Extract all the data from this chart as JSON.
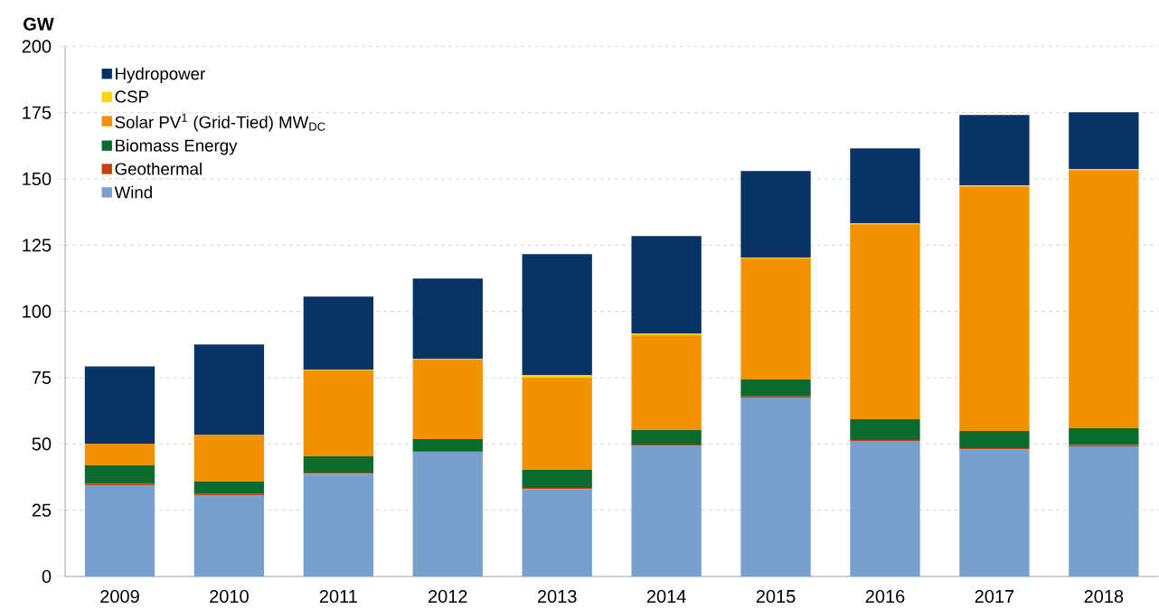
{
  "chart_data": {
    "type": "bar",
    "stacked": true,
    "ylabel": "GW",
    "categories": [
      "2009",
      "2010",
      "2011",
      "2012",
      "2013",
      "2014",
      "2015",
      "2016",
      "2017",
      "2018"
    ],
    "series": [
      {
        "name": "Wind",
        "color": "#77a1cc",
        "values": [
          34.4,
          30.7,
          38.8,
          47.0,
          33.0,
          49.4,
          67.5,
          51.1,
          48.0,
          49.1
        ]
      },
      {
        "name": "Geothermal",
        "color": "#c8400f",
        "values": [
          0.5,
          0.4,
          0.4,
          0.4,
          0.4,
          0.4,
          0.4,
          0.4,
          0.4,
          0.5
        ]
      },
      {
        "name": "Biomass Energy",
        "color": "#0b6b2f",
        "values": [
          7.0,
          4.7,
          6.1,
          4.4,
          6.8,
          5.4,
          6.4,
          7.8,
          6.5,
          6.3
        ]
      },
      {
        "name": "Solar PV$^{1}$ (Grid-Tied) MW$_{DC}$",
        "color": "#f39200",
        "values": [
          8.2,
          17.7,
          32.4,
          30.0,
          34.8,
          35.8,
          45.7,
          73.6,
          92.3,
          97.4
        ]
      },
      {
        "name": "CSP",
        "color": "#ffd500",
        "values": [
          null,
          null,
          0.3,
          0.3,
          1.0,
          0.7,
          0.3,
          0.3,
          0.3,
          0.4
        ]
      },
      {
        "name": "Hydropower",
        "color": "#083365",
        "values": [
          29.2,
          34.0,
          27.6,
          30.3,
          45.6,
          36.7,
          32.7,
          28.3,
          26.6,
          21.4
        ]
      }
    ],
    "ylim": [
      0,
      200
    ],
    "yticks": [
      0,
      25,
      50,
      75,
      100,
      125,
      150,
      175,
      200
    ],
    "grid": "y",
    "legend": "top left"
  }
}
